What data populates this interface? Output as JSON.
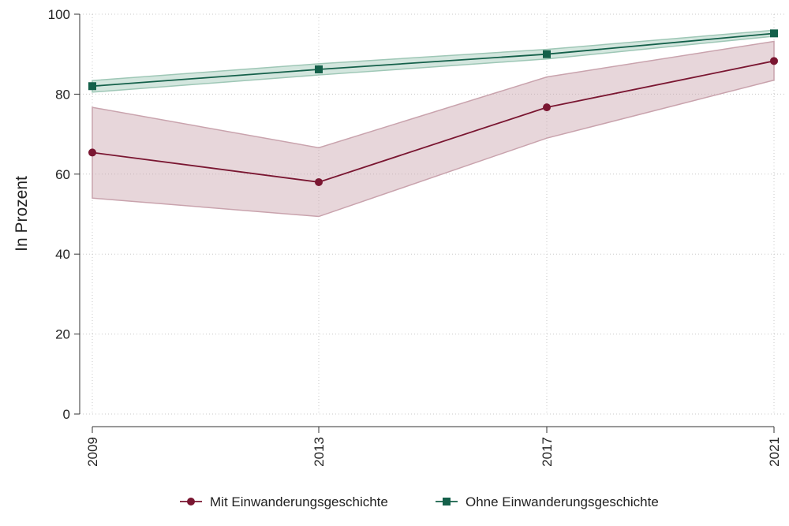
{
  "chart_data": {
    "type": "line",
    "title": "",
    "xlabel": "",
    "ylabel": "In Prozent",
    "x": [
      "2009",
      "2013",
      "2017",
      "2021"
    ],
    "ylim": [
      0,
      100
    ],
    "yticks": [
      0,
      20,
      40,
      60,
      80,
      100
    ],
    "grid": true,
    "legend_position": "bottom",
    "series": [
      {
        "name": "Mit Einwanderungsgeschichte",
        "marker": "circle",
        "color": "#7a1631",
        "band_color": "#c9a3ad",
        "values": [
          65.4,
          58.0,
          76.7,
          88.3
        ],
        "ci_lower": [
          54.0,
          49.4,
          69.0,
          83.5
        ],
        "ci_upper": [
          76.7,
          66.6,
          84.3,
          93.2
        ]
      },
      {
        "name": "Ohne Einwanderungsgeschichte",
        "marker": "square",
        "color": "#14604a",
        "band_color": "#9ec7b6",
        "values": [
          82.0,
          86.2,
          90.0,
          95.2
        ],
        "ci_lower": [
          80.5,
          84.8,
          88.8,
          94.5
        ],
        "ci_upper": [
          83.4,
          87.6,
          91.2,
          96.0
        ]
      }
    ]
  }
}
